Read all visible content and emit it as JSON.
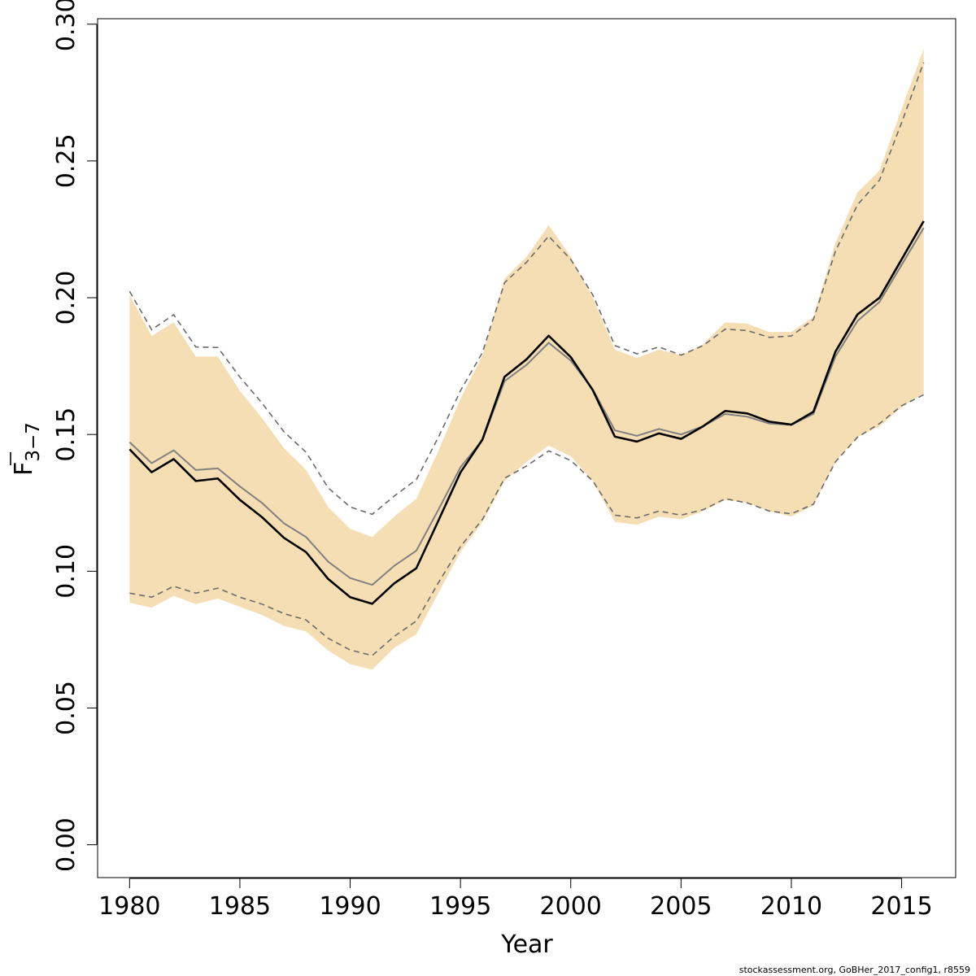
{
  "chart_data": {
    "type": "line",
    "xlabel": "Year",
    "ylabel": {
      "main": "F",
      "subscript": "3−7"
    },
    "xlim": [
      1978.55,
      2017.45
    ],
    "ylim": [
      -0.012,
      0.302
    ],
    "xticks": [
      1980,
      1985,
      1990,
      1995,
      2000,
      2005,
      2010,
      2015
    ],
    "yticks": [
      "0.00",
      "0.05",
      "0.10",
      "0.15",
      "0.20",
      "0.25",
      "0.30"
    ],
    "grid": false,
    "legend": "none",
    "x": [
      1980,
      1981,
      1982,
      1983,
      1984,
      1985,
      1986,
      1987,
      1988,
      1989,
      1990,
      1991,
      1992,
      1993,
      1994,
      1995,
      1996,
      1997,
      1998,
      1999,
      2000,
      2001,
      2002,
      2003,
      2004,
      2005,
      2006,
      2007,
      2008,
      2009,
      2010,
      2011,
      2012,
      2013,
      2014,
      2015,
      2016
    ],
    "series": [
      {
        "role": "ci_band",
        "color": "#f5deb3",
        "lower": [
          0.0885,
          0.0867,
          0.091,
          0.088,
          0.09,
          0.087,
          0.084,
          0.08,
          0.078,
          0.071,
          0.066,
          0.064,
          0.072,
          0.077,
          0.092,
          0.107,
          0.118,
          0.133,
          0.14,
          0.146,
          0.142,
          0.133,
          0.118,
          0.117,
          0.12,
          0.119,
          0.122,
          0.126,
          0.125,
          0.122,
          0.12,
          0.124,
          0.14,
          0.149,
          0.153,
          0.16,
          0.165
        ],
        "upper": [
          0.201,
          0.186,
          0.191,
          0.1785,
          0.1785,
          0.166,
          0.156,
          0.145,
          0.137,
          0.1235,
          0.1155,
          0.1125,
          0.12,
          0.1265,
          0.144,
          0.163,
          0.179,
          0.207,
          0.215,
          0.2265,
          0.215,
          0.2,
          0.181,
          0.178,
          0.181,
          0.179,
          0.183,
          0.191,
          0.1905,
          0.1875,
          0.1875,
          0.193,
          0.22,
          0.2385,
          0.2465,
          0.269,
          0.291
        ]
      },
      {
        "role": "estimate",
        "color": "#000000",
        "values": [
          0.1446,
          0.1362,
          0.141,
          0.133,
          0.1339,
          0.1261,
          0.1198,
          0.1122,
          0.107,
          0.0972,
          0.0905,
          0.0881,
          0.0956,
          0.1011,
          0.1185,
          0.1361,
          0.1482,
          0.1711,
          0.1775,
          0.1861,
          0.1783,
          0.1662,
          0.1492,
          0.1474,
          0.1504,
          0.1484,
          0.153,
          0.1586,
          0.1577,
          0.1547,
          0.1536,
          0.1583,
          0.1803,
          0.1939,
          0.2,
          0.214,
          0.228
        ]
      },
      {
        "role": "estimate_grey",
        "color": "#808080",
        "values": [
          0.1472,
          0.1395,
          0.1442,
          0.137,
          0.1376,
          0.131,
          0.125,
          0.1175,
          0.1125,
          0.1035,
          0.0975,
          0.095,
          0.102,
          0.1075,
          0.1225,
          0.138,
          0.148,
          0.1695,
          0.1755,
          0.1835,
          0.177,
          0.1665,
          0.1515,
          0.1495,
          0.152,
          0.15,
          0.153,
          0.1575,
          0.1565,
          0.154,
          0.1535,
          0.1575,
          0.1785,
          0.1915,
          0.1985,
          0.212,
          0.2255
        ]
      },
      {
        "role": "dashed_lower",
        "color": "#6b6b6b",
        "values": [
          0.092,
          0.0905,
          0.0945,
          0.092,
          0.0938,
          0.0905,
          0.088,
          0.0845,
          0.0822,
          0.0755,
          0.0712,
          0.0692,
          0.0762,
          0.0818,
          0.0958,
          0.109,
          0.119,
          0.134,
          0.1385,
          0.144,
          0.1405,
          0.133,
          0.1205,
          0.1195,
          0.122,
          0.1205,
          0.1225,
          0.1265,
          0.125,
          0.122,
          0.121,
          0.1245,
          0.14,
          0.149,
          0.154,
          0.1605,
          0.1645
        ]
      },
      {
        "role": "dashed_upper",
        "color": "#6b6b6b",
        "values": [
          0.2023,
          0.1883,
          0.1938,
          0.182,
          0.1818,
          0.171,
          0.1615,
          0.151,
          0.1435,
          0.1305,
          0.1235,
          0.1208,
          0.1275,
          0.1335,
          0.149,
          0.166,
          0.18,
          0.2055,
          0.213,
          0.2225,
          0.214,
          0.201,
          0.1825,
          0.1795,
          0.182,
          0.179,
          0.1825,
          0.1885,
          0.188,
          0.1855,
          0.186,
          0.192,
          0.217,
          0.234,
          0.243,
          0.264,
          0.286
        ]
      }
    ]
  },
  "footer": "stockassessment.org, GoBHer_2017_config1, r8559"
}
